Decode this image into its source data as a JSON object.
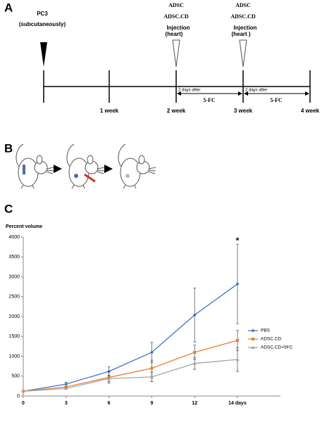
{
  "panel_a": {
    "label": "A",
    "cell_line": "PC3",
    "route": "(subcutaneously)",
    "injections": [
      {
        "agents": [
          "ADSC",
          "ADSC.CD"
        ],
        "action": "Injection",
        "site": "(heart)"
      },
      {
        "agents": [
          "ADSC",
          "ADSC.CD"
        ],
        "action": "Injection",
        "site": "(heart )"
      }
    ],
    "weeks": [
      "1 week",
      "2 week",
      "3 week",
      "4 week"
    ],
    "treatments": [
      {
        "delay": "2 days after",
        "drug": "5-FC"
      },
      {
        "delay": "2 days after",
        "drug": "5-FC"
      }
    ]
  },
  "panel_b": {
    "label": "B"
  },
  "panel_c": {
    "label": "C"
  },
  "chart_data": {
    "type": "line",
    "y_label": "Percent volume",
    "annotation": "*",
    "categories": [
      "0",
      "3",
      "6",
      "9",
      "12",
      "14 days"
    ],
    "series": [
      {
        "name": "PBS",
        "color": "#4472c4",
        "values": [
          120,
          300,
          620,
          1100,
          2040,
          2820
        ],
        "errors": [
          null,
          50,
          120,
          250,
          680,
          1000
        ]
      },
      {
        "name": "ADSC.CD",
        "color": "#ed7d31",
        "values": [
          120,
          230,
          470,
          700,
          1100,
          1400
        ],
        "errors": [
          null,
          30,
          150,
          200,
          180,
          250
        ]
      },
      {
        "name": "ADSC.CD+5FC",
        "color": "#a5a5a5",
        "values": [
          120,
          190,
          440,
          480,
          820,
          920
        ],
        "errors": [
          null,
          20,
          80,
          120,
          150,
          300
        ]
      }
    ],
    "ylim": [
      0,
      4000
    ],
    "yticks": [
      0,
      500,
      1000,
      1500,
      2000,
      2500,
      3000,
      3500,
      4000
    ],
    "legend": "right"
  }
}
